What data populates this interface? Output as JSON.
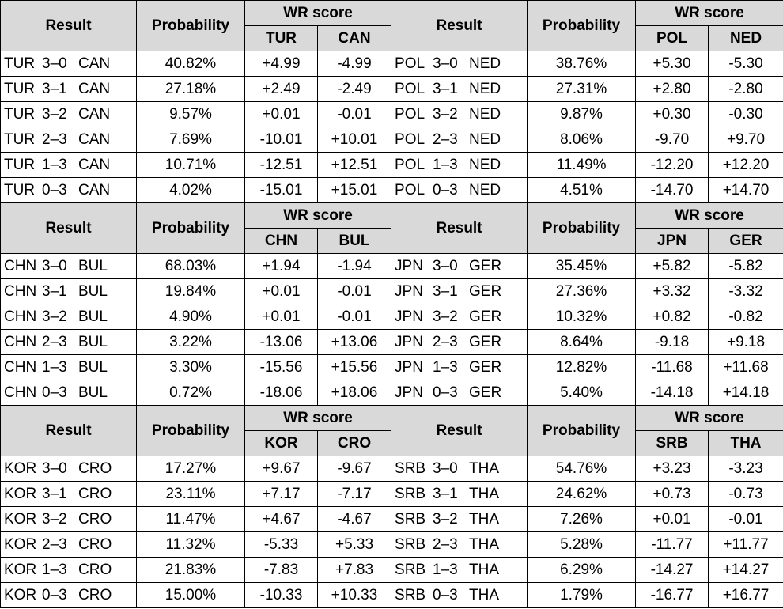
{
  "headers": {
    "result": "Result",
    "probability": "Probability",
    "wr_score": "WR score"
  },
  "sections": [
    {
      "left": {
        "team1": "TUR",
        "team2": "CAN",
        "rows": [
          {
            "score": "3–0",
            "prob": "40.82%",
            "wr1": "+4.99",
            "wr2": "-4.99"
          },
          {
            "score": "3–1",
            "prob": "27.18%",
            "wr1": "+2.49",
            "wr2": "-2.49"
          },
          {
            "score": "3–2",
            "prob": "9.57%",
            "wr1": "+0.01",
            "wr2": "-0.01"
          },
          {
            "score": "2–3",
            "prob": "7.69%",
            "wr1": "-10.01",
            "wr2": "+10.01"
          },
          {
            "score": "1–3",
            "prob": "10.71%",
            "wr1": "-12.51",
            "wr2": "+12.51"
          },
          {
            "score": "0–3",
            "prob": "4.02%",
            "wr1": "-15.01",
            "wr2": "+15.01"
          }
        ]
      },
      "right": {
        "team1": "POL",
        "team2": "NED",
        "rows": [
          {
            "score": "3–0",
            "prob": "38.76%",
            "wr1": "+5.30",
            "wr2": "-5.30"
          },
          {
            "score": "3–1",
            "prob": "27.31%",
            "wr1": "+2.80",
            "wr2": "-2.80"
          },
          {
            "score": "3–2",
            "prob": "9.87%",
            "wr1": "+0.30",
            "wr2": "-0.30"
          },
          {
            "score": "2–3",
            "prob": "8.06%",
            "wr1": "-9.70",
            "wr2": "+9.70"
          },
          {
            "score": "1–3",
            "prob": "11.49%",
            "wr1": "-12.20",
            "wr2": "+12.20"
          },
          {
            "score": "0–3",
            "prob": "4.51%",
            "wr1": "-14.70",
            "wr2": "+14.70"
          }
        ]
      }
    },
    {
      "left": {
        "team1": "CHN",
        "team2": "BUL",
        "rows": [
          {
            "score": "3–0",
            "prob": "68.03%",
            "wr1": "+1.94",
            "wr2": "-1.94"
          },
          {
            "score": "3–1",
            "prob": "19.84%",
            "wr1": "+0.01",
            "wr2": "-0.01"
          },
          {
            "score": "3–2",
            "prob": "4.90%",
            "wr1": "+0.01",
            "wr2": "-0.01"
          },
          {
            "score": "2–3",
            "prob": "3.22%",
            "wr1": "-13.06",
            "wr2": "+13.06"
          },
          {
            "score": "1–3",
            "prob": "3.30%",
            "wr1": "-15.56",
            "wr2": "+15.56"
          },
          {
            "score": "0–3",
            "prob": "0.72%",
            "wr1": "-18.06",
            "wr2": "+18.06"
          }
        ]
      },
      "right": {
        "team1": "JPN",
        "team2": "GER",
        "rows": [
          {
            "score": "3–0",
            "prob": "35.45%",
            "wr1": "+5.82",
            "wr2": "-5.82"
          },
          {
            "score": "3–1",
            "prob": "27.36%",
            "wr1": "+3.32",
            "wr2": "-3.32"
          },
          {
            "score": "3–2",
            "prob": "10.32%",
            "wr1": "+0.82",
            "wr2": "-0.82"
          },
          {
            "score": "2–3",
            "prob": "8.64%",
            "wr1": "-9.18",
            "wr2": "+9.18"
          },
          {
            "score": "1–3",
            "prob": "12.82%",
            "wr1": "-11.68",
            "wr2": "+11.68"
          },
          {
            "score": "0–3",
            "prob": "5.40%",
            "wr1": "-14.18",
            "wr2": "+14.18"
          }
        ]
      }
    },
    {
      "left": {
        "team1": "KOR",
        "team2": "CRO",
        "rows": [
          {
            "score": "3–0",
            "prob": "17.27%",
            "wr1": "+9.67",
            "wr2": "-9.67"
          },
          {
            "score": "3–1",
            "prob": "23.11%",
            "wr1": "+7.17",
            "wr2": "-7.17"
          },
          {
            "score": "3–2",
            "prob": "11.47%",
            "wr1": "+4.67",
            "wr2": "-4.67"
          },
          {
            "score": "2–3",
            "prob": "11.32%",
            "wr1": "-5.33",
            "wr2": "+5.33"
          },
          {
            "score": "1–3",
            "prob": "21.83%",
            "wr1": "-7.83",
            "wr2": "+7.83"
          },
          {
            "score": "0–3",
            "prob": "15.00%",
            "wr1": "-10.33",
            "wr2": "+10.33"
          }
        ]
      },
      "right": {
        "team1": "SRB",
        "team2": "THA",
        "rows": [
          {
            "score": "3–0",
            "prob": "54.76%",
            "wr1": "+3.23",
            "wr2": "-3.23"
          },
          {
            "score": "3–1",
            "prob": "24.62%",
            "wr1": "+0.73",
            "wr2": "-0.73"
          },
          {
            "score": "3–2",
            "prob": "7.26%",
            "wr1": "+0.01",
            "wr2": "-0.01"
          },
          {
            "score": "2–3",
            "prob": "5.28%",
            "wr1": "-11.77",
            "wr2": "+11.77"
          },
          {
            "score": "1–3",
            "prob": "6.29%",
            "wr1": "-14.27",
            "wr2": "+14.27"
          },
          {
            "score": "0–3",
            "prob": "1.79%",
            "wr1": "-16.77",
            "wr2": "+16.77"
          }
        ]
      }
    }
  ]
}
